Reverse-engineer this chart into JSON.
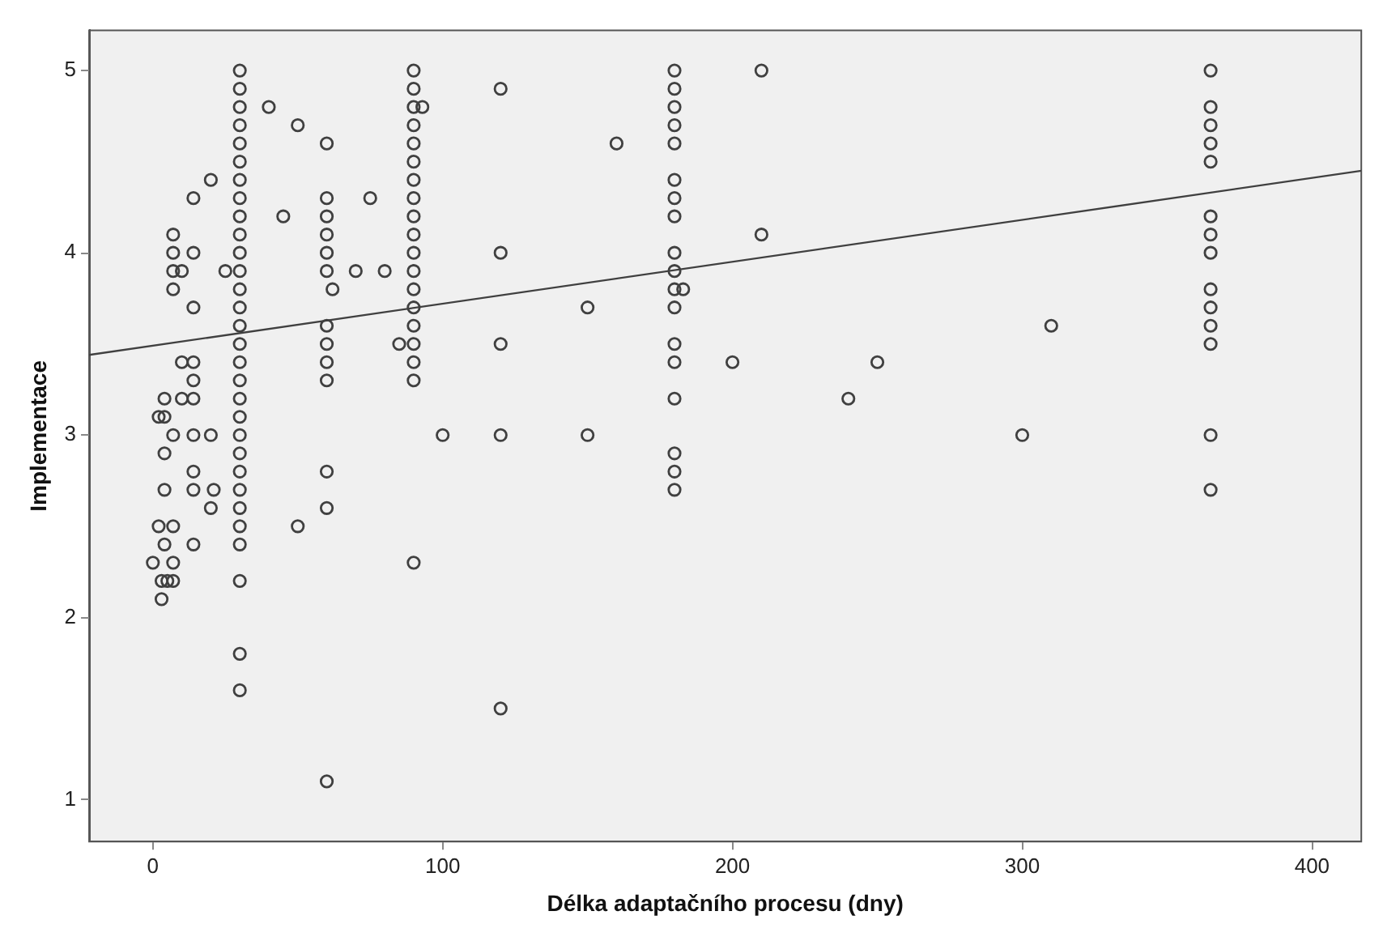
{
  "chart_data": {
    "type": "scatter",
    "xlabel": "Délka adaptačního procesu (dny)",
    "ylabel": "Implementace",
    "xlim": [
      -22,
      417
    ],
    "ylim": [
      0.77,
      5.22
    ],
    "xticks": [
      0,
      100,
      200,
      300,
      400
    ],
    "yticks": [
      1,
      2,
      3,
      4,
      5
    ],
    "grid": false,
    "legend": false,
    "marker": "circle",
    "series": [
      {
        "color": "#404040",
        "x": [
          30,
          30,
          30,
          30,
          30,
          30,
          30,
          30,
          30,
          30,
          30,
          30,
          30,
          30,
          30,
          30,
          30,
          30,
          30,
          30,
          30,
          30,
          30,
          30,
          30,
          30,
          30,
          30,
          30,
          30,
          90,
          90,
          90,
          90,
          90,
          90,
          90,
          90,
          90,
          90,
          90,
          90,
          90,
          90,
          90,
          90,
          90,
          90,
          90,
          60,
          60,
          60,
          60,
          60,
          60,
          62,
          60,
          60,
          60,
          60,
          60,
          60,
          60,
          40,
          50,
          45,
          50,
          75,
          70,
          80,
          85,
          100,
          93,
          120,
          120,
          120,
          120,
          120,
          150,
          150,
          160,
          180,
          180,
          180,
          180,
          180,
          180,
          180,
          180,
          180,
          180,
          180,
          180,
          180,
          180,
          180,
          180,
          180,
          180,
          183,
          210,
          210,
          200,
          250,
          240,
          300,
          310,
          365,
          365,
          365,
          365,
          365,
          365,
          365,
          365,
          365,
          365,
          365,
          365,
          365,
          365,
          20,
          14,
          7,
          7,
          14,
          7,
          10,
          7,
          25,
          14,
          10,
          14,
          14,
          4,
          10,
          14,
          2,
          4,
          7,
          14,
          20,
          4,
          14,
          4,
          14,
          21,
          20,
          2,
          7,
          4,
          14,
          0,
          7,
          3,
          5,
          7,
          3
        ],
        "values": [
          5.0,
          4.9,
          4.8,
          4.7,
          4.6,
          4.5,
          4.4,
          4.3,
          4.2,
          4.1,
          4.0,
          3.9,
          3.8,
          3.7,
          3.6,
          3.5,
          3.4,
          3.3,
          3.2,
          3.1,
          3.0,
          2.9,
          2.8,
          2.7,
          2.6,
          2.5,
          2.4,
          2.2,
          1.8,
          1.6,
          5.0,
          4.9,
          4.8,
          4.7,
          4.6,
          4.5,
          4.4,
          4.3,
          4.2,
          4.1,
          4.0,
          3.9,
          3.8,
          3.7,
          3.6,
          3.5,
          3.4,
          3.3,
          2.3,
          4.6,
          4.3,
          4.2,
          4.1,
          4.0,
          3.9,
          3.8,
          3.6,
          3.5,
          3.4,
          3.3,
          2.8,
          2.6,
          1.1,
          4.8,
          4.7,
          4.2,
          2.5,
          4.3,
          3.9,
          3.9,
          3.5,
          3.0,
          4.8,
          4.9,
          4.0,
          3.5,
          3.0,
          1.5,
          3.7,
          3.0,
          4.6,
          5.0,
          4.9,
          4.8,
          4.7,
          4.6,
          4.4,
          4.3,
          4.2,
          4.0,
          3.9,
          3.8,
          3.7,
          3.5,
          3.4,
          3.2,
          2.9,
          2.8,
          2.7,
          3.8,
          5.0,
          4.1,
          3.4,
          3.4,
          3.2,
          3.0,
          3.6,
          5.0,
          4.8,
          4.7,
          4.6,
          4.5,
          4.2,
          4.1,
          4.0,
          3.8,
          3.7,
          3.6,
          3.5,
          3.0,
          2.7,
          4.4,
          4.3,
          4.1,
          4.0,
          4.0,
          3.9,
          3.9,
          3.8,
          3.9,
          3.7,
          3.4,
          3.4,
          3.3,
          3.2,
          3.2,
          3.2,
          3.1,
          3.1,
          3.0,
          3.0,
          3.0,
          2.9,
          2.8,
          2.7,
          2.7,
          2.7,
          2.6,
          2.5,
          2.5,
          2.4,
          2.4,
          2.3,
          2.3,
          2.2,
          2.2,
          2.2,
          2.1
        ]
      },
      {
        "type": "line",
        "color": "#404040",
        "marker": "none",
        "x": [
          -22,
          417
        ],
        "values": [
          3.44,
          4.45
        ]
      }
    ]
  }
}
